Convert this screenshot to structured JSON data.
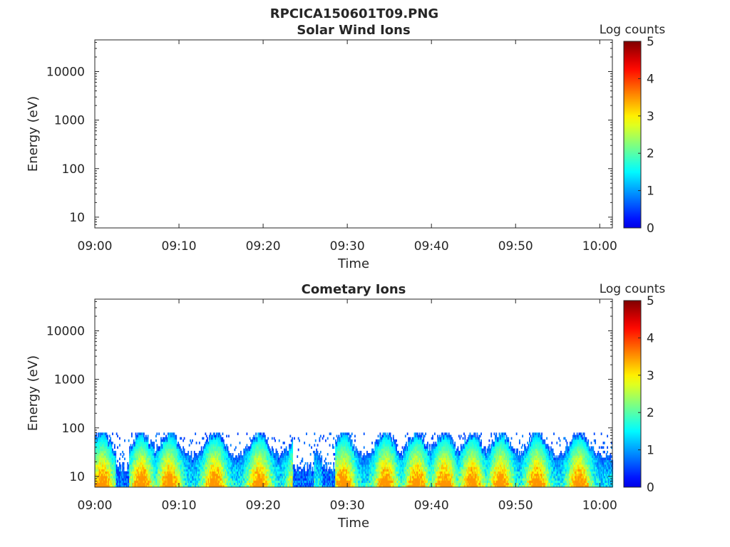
{
  "figure": {
    "title": "RPCICA150601T09.PNG"
  },
  "chart_data": [
    {
      "type": "heatmap",
      "title": "Solar Wind Ions",
      "xlabel": "Time",
      "ylabel": "Energy (eV)",
      "x_ticks": [
        "09:00",
        "09:10",
        "09:20",
        "09:30",
        "09:40",
        "09:50",
        "10:00"
      ],
      "x_range_minutes": [
        0,
        61.5
      ],
      "y_scale": "log",
      "y_ticks": [
        10,
        100,
        1000,
        10000
      ],
      "y_tick_labels": [
        "10",
        "100",
        "1000",
        "10000"
      ],
      "ylim": [
        6,
        45000
      ],
      "colorbar": {
        "label": "Log counts",
        "range": [
          0,
          5
        ],
        "ticks": [
          "0",
          "1",
          "2",
          "3",
          "4",
          "5"
        ],
        "colormap": "jet"
      },
      "data": "empty"
    },
    {
      "type": "heatmap",
      "title": "Cometary Ions",
      "xlabel": "Time",
      "ylabel": "Energy (eV)",
      "x_ticks": [
        "09:00",
        "09:10",
        "09:20",
        "09:30",
        "09:40",
        "09:50",
        "10:00"
      ],
      "x_range_minutes": [
        0,
        61.5
      ],
      "y_scale": "log",
      "y_ticks": [
        10,
        100,
        1000,
        10000
      ],
      "y_tick_labels": [
        "10",
        "100",
        "1000",
        "10000"
      ],
      "ylim": [
        6,
        45000
      ],
      "colorbar": {
        "label": "Log counts",
        "range": [
          0,
          5
        ],
        "ticks": [
          "0",
          "1",
          "2",
          "3",
          "4",
          "5"
        ],
        "colormap": "jet"
      },
      "energy_band_eV": [
        6,
        80
      ],
      "max_log_counts_approx": 3.5,
      "intensity_peaks_minutes": [
        0.8,
        5.5,
        8.8,
        14.2,
        19.5,
        24.3,
        29.5,
        34.5,
        38.2,
        41.5,
        44.8,
        48.2,
        52.5,
        57.5
      ],
      "low_activity_intervals_minutes": [
        [
          2.5,
          4.0
        ],
        [
          23.5,
          26.0
        ],
        [
          27.0,
          28.5
        ]
      ]
    }
  ]
}
